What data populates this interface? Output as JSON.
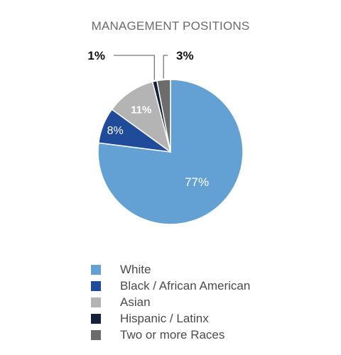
{
  "chart_data": {
    "type": "pie",
    "title": "MANAGEMENT POSITIONS",
    "categories": [
      "White",
      "Black / African American",
      "Asian",
      "Hispanic / Latinx",
      "Two or more Races"
    ],
    "values": [
      77,
      8,
      11,
      1,
      3
    ],
    "labels": [
      "77%",
      "8%",
      "11%",
      "1%",
      "3%"
    ],
    "colors": [
      "#63a1d4",
      "#1f4b9a",
      "#b4b4b4",
      "#15203a",
      "#6c6c6c"
    ],
    "legend_position": "bottom"
  }
}
